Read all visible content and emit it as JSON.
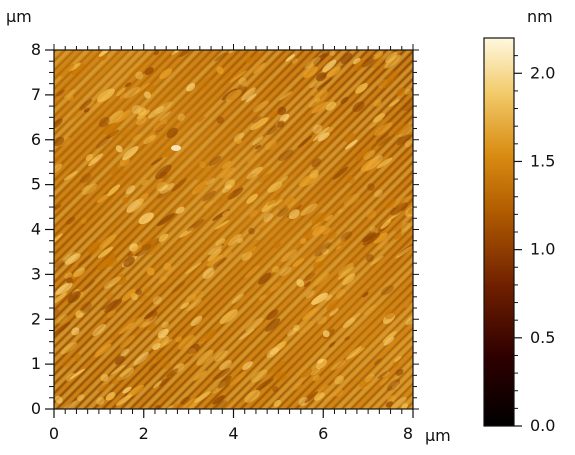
{
  "figure": {
    "type": "afm_height_map",
    "x_axis": {
      "unit": "μm",
      "min": 0,
      "max": 8,
      "ticks": [
        "0",
        "2",
        "4",
        "6",
        "8"
      ]
    },
    "y_axis": {
      "unit": "μm",
      "min": 0,
      "max": 8,
      "ticks": [
        "0",
        "1",
        "2",
        "3",
        "4",
        "5",
        "6",
        "7",
        "8"
      ]
    },
    "colorbar": {
      "unit": "nm",
      "min": 0.0,
      "max": 2.2,
      "ticks": [
        "0.0",
        "0.5",
        "1.0",
        "1.5",
        "2.0"
      ],
      "colors": [
        "#000000",
        "#2f0000",
        "#6f1f00",
        "#b05b00",
        "#d98c12",
        "#f2cb6b",
        "#fff8df"
      ]
    }
  }
}
